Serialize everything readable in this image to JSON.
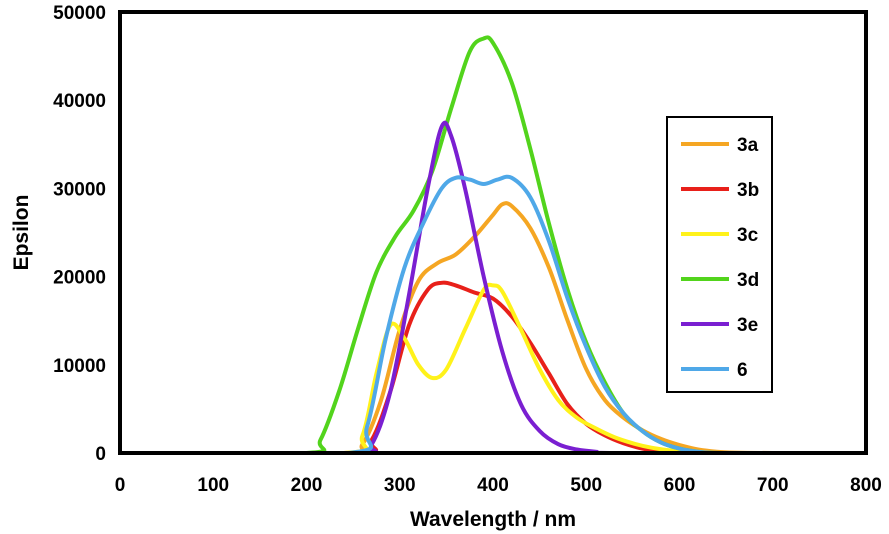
{
  "chart_data": {
    "type": "line",
    "xlabel": "Wavelength / nm",
    "ylabel": "Epsilon",
    "xlim": [
      0,
      800
    ],
    "ylim": [
      0,
      50000
    ],
    "x_ticks": [
      "0",
      "100",
      "200",
      "300",
      "400",
      "500",
      "600",
      "700",
      "800"
    ],
    "y_ticks": [
      "0",
      "10000",
      "20000",
      "30000",
      "40000",
      "50000"
    ],
    "grid": false,
    "legend_position": "right",
    "series": [
      {
        "name": "3a",
        "color": "#F5A623",
        "points": [
          [
            0,
            0
          ],
          [
            240,
            0
          ],
          [
            260,
            1000
          ],
          [
            280,
            6000
          ],
          [
            300,
            14000
          ],
          [
            320,
            19500
          ],
          [
            340,
            21500
          ],
          [
            360,
            22500
          ],
          [
            380,
            24500
          ],
          [
            400,
            27000
          ],
          [
            410,
            28200
          ],
          [
            420,
            28000
          ],
          [
            440,
            25500
          ],
          [
            460,
            21000
          ],
          [
            480,
            15000
          ],
          [
            500,
            9500
          ],
          [
            520,
            6000
          ],
          [
            540,
            4000
          ],
          [
            560,
            2600
          ],
          [
            580,
            1600
          ],
          [
            600,
            900
          ],
          [
            620,
            400
          ],
          [
            640,
            150
          ],
          [
            660,
            50
          ],
          [
            700,
            0
          ],
          [
            800,
            0
          ]
        ]
      },
      {
        "name": "3b",
        "color": "#E8201A",
        "points": [
          [
            0,
            0
          ],
          [
            250,
            0
          ],
          [
            270,
            1500
          ],
          [
            290,
            7000
          ],
          [
            310,
            14500
          ],
          [
            330,
            18500
          ],
          [
            345,
            19300
          ],
          [
            360,
            19000
          ],
          [
            380,
            18200
          ],
          [
            400,
            17500
          ],
          [
            420,
            15500
          ],
          [
            440,
            12500
          ],
          [
            460,
            9000
          ],
          [
            480,
            5500
          ],
          [
            500,
            3300
          ],
          [
            520,
            2000
          ],
          [
            540,
            1100
          ],
          [
            560,
            500
          ],
          [
            580,
            150
          ],
          [
            600,
            50
          ],
          [
            640,
            0
          ],
          [
            800,
            0
          ]
        ]
      },
      {
        "name": "3c",
        "color": "#FFF21A",
        "points": [
          [
            0,
            0
          ],
          [
            240,
            0
          ],
          [
            260,
            2000
          ],
          [
            275,
            9000
          ],
          [
            290,
            14500
          ],
          [
            305,
            13000
          ],
          [
            320,
            10000
          ],
          [
            335,
            8500
          ],
          [
            350,
            9500
          ],
          [
            370,
            14000
          ],
          [
            390,
            18500
          ],
          [
            400,
            19000
          ],
          [
            410,
            18300
          ],
          [
            430,
            14000
          ],
          [
            450,
            9500
          ],
          [
            470,
            6000
          ],
          [
            490,
            4000
          ],
          [
            510,
            2800
          ],
          [
            530,
            1800
          ],
          [
            550,
            1100
          ],
          [
            570,
            600
          ],
          [
            590,
            300
          ],
          [
            610,
            100
          ],
          [
            640,
            0
          ],
          [
            800,
            0
          ]
        ]
      },
      {
        "name": "3d",
        "color": "#52D41C",
        "points": [
          [
            0,
            0
          ],
          [
            200,
            0
          ],
          [
            215,
            1500
          ],
          [
            235,
            7000
          ],
          [
            255,
            14000
          ],
          [
            275,
            20500
          ],
          [
            295,
            24500
          ],
          [
            315,
            27500
          ],
          [
            335,
            32000
          ],
          [
            355,
            39000
          ],
          [
            375,
            45500
          ],
          [
            390,
            47000
          ],
          [
            400,
            46500
          ],
          [
            420,
            42000
          ],
          [
            440,
            34500
          ],
          [
            460,
            26000
          ],
          [
            480,
            18500
          ],
          [
            500,
            12500
          ],
          [
            520,
            8000
          ],
          [
            540,
            4500
          ],
          [
            560,
            2500
          ],
          [
            580,
            1200
          ],
          [
            600,
            500
          ],
          [
            620,
            150
          ],
          [
            650,
            0
          ],
          [
            800,
            0
          ]
        ]
      },
      {
        "name": "3e",
        "color": "#7A1FD1",
        "points": [
          [
            0,
            0
          ],
          [
            250,
            0
          ],
          [
            270,
            1000
          ],
          [
            290,
            7000
          ],
          [
            310,
            18000
          ],
          [
            330,
            30000
          ],
          [
            345,
            37000
          ],
          [
            355,
            36000
          ],
          [
            370,
            30000
          ],
          [
            390,
            20000
          ],
          [
            410,
            11500
          ],
          [
            430,
            5500
          ],
          [
            450,
            2500
          ],
          [
            470,
            1000
          ],
          [
            490,
            400
          ],
          [
            510,
            150
          ],
          [
            540,
            0
          ],
          [
            800,
            0
          ]
        ]
      },
      {
        "name": "6",
        "color": "#4FA8E8",
        "points": [
          [
            0,
            0
          ],
          [
            245,
            0
          ],
          [
            265,
            3000
          ],
          [
            285,
            13000
          ],
          [
            305,
            21000
          ],
          [
            325,
            26000
          ],
          [
            345,
            30000
          ],
          [
            360,
            31200
          ],
          [
            375,
            31000
          ],
          [
            390,
            30500
          ],
          [
            405,
            31000
          ],
          [
            420,
            31200
          ],
          [
            440,
            29000
          ],
          [
            460,
            24000
          ],
          [
            480,
            17500
          ],
          [
            500,
            12000
          ],
          [
            520,
            7500
          ],
          [
            540,
            4500
          ],
          [
            560,
            2500
          ],
          [
            580,
            1200
          ],
          [
            600,
            500
          ],
          [
            620,
            150
          ],
          [
            650,
            0
          ],
          [
            800,
            0
          ]
        ]
      }
    ]
  }
}
